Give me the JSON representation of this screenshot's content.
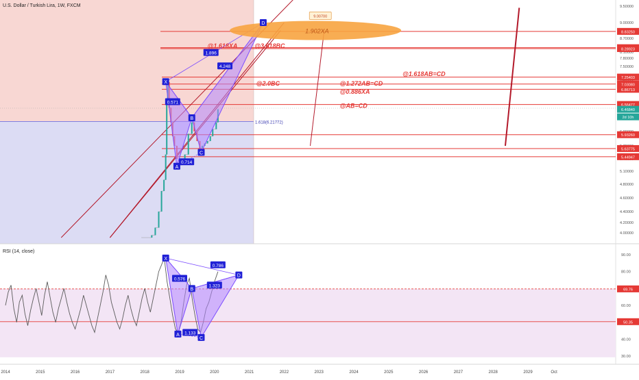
{
  "header": {
    "title": "U.S. Dollar / Turkish Lira, 1W, FXCM"
  },
  "rsi_header": "RSI (14, close)",
  "colors": {
    "up": "#26a69a",
    "down": "#ef5350",
    "level": "#e53935",
    "pattern_fill": "#b388ff",
    "pattern_line": "#7c4dff",
    "label_bg": "#2121d6",
    "zone_top": "#f8d7d3",
    "zone_bottom": "#dcdcf4",
    "ellipse": "#f7a440",
    "rsi_line": "#5b5b5b",
    "rsi_band": "#f3e5f5"
  },
  "chart_data": [
    {
      "type": "line",
      "name": "price",
      "title": "U.S. Dollar / Turkish Lira, 1W, FXCM",
      "x_ticks": [
        "2014",
        "2015",
        "2016",
        "2017",
        "2018",
        "2019",
        "2020",
        "2021",
        "2022",
        "2023",
        "2024",
        "2025",
        "2026",
        "2027",
        "2028",
        "2029",
        "Oct"
      ],
      "y_ticks": [
        4.0,
        4.2,
        4.4,
        4.6,
        4.8,
        5.1,
        5.4,
        5.7,
        6.0,
        6.3,
        6.6,
        6.9,
        7.2,
        7.5,
        7.8,
        8.1,
        8.4,
        8.7,
        9.0,
        9.5
      ],
      "y_tick_labels": [
        "4.00000",
        "4.20000",
        "4.40000",
        "4.60000",
        "4.80000",
        "5.10000",
        "5.40000",
        "5.70000",
        "6.00000",
        "6.30000",
        "6.60000",
        "6.90000",
        "7.20000",
        "7.50000",
        "7.80000",
        "8.10000",
        "8.40000",
        "8.70000",
        "9.00000",
        "9.50000"
      ],
      "price_series": [
        {
          "x": 2017.9,
          "y": 3.9
        },
        {
          "x": 2018.0,
          "y": 3.8
        },
        {
          "x": 2018.1,
          "y": 3.85
        },
        {
          "x": 2018.2,
          "y": 3.95
        },
        {
          "x": 2018.3,
          "y": 4.1
        },
        {
          "x": 2018.4,
          "y": 4.4
        },
        {
          "x": 2018.48,
          "y": 4.7
        },
        {
          "x": 2018.55,
          "y": 4.9
        },
        {
          "x": 2018.6,
          "y": 5.5
        },
        {
          "x": 2018.63,
          "y": 6.6
        },
        {
          "x": 2018.66,
          "y": 7.1
        },
        {
          "x": 2018.7,
          "y": 6.5
        },
        {
          "x": 2018.75,
          "y": 6.2
        },
        {
          "x": 2018.8,
          "y": 5.9
        },
        {
          "x": 2018.85,
          "y": 5.7
        },
        {
          "x": 2018.92,
          "y": 5.4
        },
        {
          "x": 2019.0,
          "y": 5.25
        },
        {
          "x": 2019.08,
          "y": 5.4
        },
        {
          "x": 2019.15,
          "y": 5.5
        },
        {
          "x": 2019.25,
          "y": 5.95
        },
        {
          "x": 2019.35,
          "y": 6.2
        },
        {
          "x": 2019.42,
          "y": 6.0
        },
        {
          "x": 2019.5,
          "y": 5.8
        },
        {
          "x": 2019.58,
          "y": 5.65
        },
        {
          "x": 2019.65,
          "y": 5.7
        },
        {
          "x": 2019.72,
          "y": 5.75
        },
        {
          "x": 2019.8,
          "y": 5.8
        },
        {
          "x": 2019.88,
          "y": 5.9
        },
        {
          "x": 2019.95,
          "y": 6.05
        },
        {
          "x": 2020.05,
          "y": 6.2
        },
        {
          "x": 2020.1,
          "y": 6.47
        }
      ],
      "rsi_series": {
        "x": [
          2014.0,
          2014.08,
          2014.16,
          2014.24,
          2014.32,
          2014.4,
          2014.48,
          2014.56,
          2014.64,
          2014.72,
          2014.8,
          2014.88,
          2014.96,
          2015.04,
          2015.12,
          2015.2,
          2015.28,
          2015.36,
          2015.44,
          2015.52,
          2015.6,
          2015.68,
          2015.76,
          2015.84,
          2015.92,
          2016.0,
          2016.08,
          2016.16,
          2016.24,
          2016.32,
          2016.4,
          2016.48,
          2016.56,
          2016.64,
          2016.72,
          2016.8,
          2016.88,
          2016.96,
          2017.04,
          2017.12,
          2017.2,
          2017.28,
          2017.36,
          2017.44,
          2017.52,
          2017.6,
          2017.68,
          2017.76,
          2017.84,
          2017.92,
          2018.0,
          2018.08,
          2018.16,
          2018.24,
          2018.32,
          2018.4,
          2018.48,
          2018.56,
          2018.64,
          2018.72,
          2018.8,
          2018.88,
          2018.96,
          2019.04,
          2019.12,
          2019.2,
          2019.28,
          2019.36,
          2019.44,
          2019.52,
          2019.6,
          2019.68,
          2019.76,
          2019.84,
          2019.92,
          2020.0,
          2020.1
        ],
        "y": [
          60,
          68,
          72,
          58,
          50,
          62,
          66,
          55,
          48,
          57,
          64,
          70,
          62,
          54,
          66,
          74,
          65,
          56,
          50,
          58,
          64,
          70,
          62,
          55,
          50,
          46,
          52,
          58,
          66,
          60,
          54,
          48,
          44,
          52,
          60,
          68,
          78,
          72,
          62,
          56,
          50,
          46,
          52,
          60,
          66,
          58,
          52,
          48,
          56,
          64,
          70,
          62,
          56,
          64,
          72,
          80,
          84,
          88,
          74,
          64,
          54,
          46,
          44,
          50,
          62,
          72,
          76,
          64,
          54,
          46,
          44,
          50,
          58,
          62,
          68,
          74,
          80
        ]
      },
      "levels": [
        {
          "value": 8.8325,
          "label": "8.83250"
        },
        {
          "value": 8.338,
          "label": "8.33800"
        },
        {
          "value": 8.28923,
          "label": "8.28923"
        },
        {
          "value": 7.25403,
          "label": "7.25403"
        },
        {
          "value": 7.0308,
          "label": "7.03080"
        },
        {
          "value": 6.86713,
          "label": "6.86713"
        },
        {
          "value": 6.56477,
          "label": "6.56477"
        },
        {
          "value": 5.9326,
          "label": "5.93260"
        },
        {
          "value": 5.63775,
          "label": "5.63775"
        },
        {
          "value": 5.44947,
          "label": "5.44947"
        }
      ],
      "current_price": {
        "value": 6.4684,
        "label": "6.46840",
        "countdown": "2d 10h"
      },
      "fib_label": "1.618(6.21772)",
      "fib_value": 6.21772,
      "xabcd": [
        {
          "name": "X",
          "x": 2018.6,
          "y": 7.12
        },
        {
          "name": "A",
          "x": 2018.92,
          "y": 5.22
        },
        {
          "name": "B",
          "x": 2019.35,
          "y": 6.3
        },
        {
          "name": "C",
          "x": 2019.62,
          "y": 5.55
        },
        {
          "name": "D",
          "x": 2021.4,
          "y": 9.0
        }
      ],
      "ratios": [
        {
          "text": "0.571",
          "x": 2018.8,
          "y": 6.62
        },
        {
          "text": "1.896",
          "x": 2019.9,
          "y": 8.08
        },
        {
          "text": "4.248",
          "x": 2020.3,
          "y": 7.52
        },
        {
          "text": "0.714",
          "x": 2019.2,
          "y": 5.33
        }
      ],
      "target_badge": {
        "text": "9.00700",
        "x": 2023.0,
        "y": 9.2
      },
      "ellipse": {
        "cx": 2022.9,
        "cy": 8.85,
        "label": "1.902XA"
      },
      "annotations": [
        {
          "text": "@1.618XA",
          "x": 2019.8,
          "y": 8.32
        },
        {
          "text": "@3.618BC",
          "x": 2021.15,
          "y": 8.32
        },
        {
          "text": "@1.618AB=CD",
          "x": 2025.4,
          "y": 7.28
        },
        {
          "text": "@2.0BC",
          "x": 2021.2,
          "y": 6.97
        },
        {
          "text": "@1.272AB=CD",
          "x": 2023.6,
          "y": 6.97
        },
        {
          "text": "@0.886XA",
          "x": 2023.6,
          "y": 6.78
        },
        {
          "text": "@AB=CD",
          "x": 2023.6,
          "y": 6.5
        }
      ],
      "trend_lines": [
        {
          "x1": 2015.6,
          "y1": 3.7,
          "x2": 2022.4,
          "y2": 9.9
        },
        {
          "x1": 2017.0,
          "y1": 3.7,
          "x2": 2022.0,
          "y2": 9.0
        },
        {
          "x1": 2017.0,
          "y1": 3.7,
          "x2": 2021.9,
          "y2": 8.85
        }
      ],
      "projection_lines": [
        {
          "x1": 2023.15,
          "y1": 8.85,
          "x2": 2022.75,
          "y2": 5.7,
          "width": 1
        },
        {
          "x1": 2028.75,
          "y1": 9.45,
          "x2": 2028.35,
          "y2": 5.7,
          "width": 2
        }
      ]
    },
    {
      "type": "line",
      "name": "RSI (14, close)",
      "y_ticks": [
        30,
        40,
        50,
        60,
        70,
        80,
        90
      ],
      "y_tick_labels": [
        "30.00",
        "40.00",
        "50.00",
        "60.00",
        "70.00",
        "80.00",
        "90.00"
      ],
      "levels": [
        {
          "value": 69.76,
          "label": "69.76"
        },
        {
          "value": 50.35,
          "label": "50.35"
        }
      ],
      "xabcd": [
        {
          "name": "X",
          "x": 2018.6,
          "y": 88
        },
        {
          "name": "A",
          "x": 2018.95,
          "y": 43
        },
        {
          "name": "B",
          "x": 2019.35,
          "y": 70
        },
        {
          "name": "C",
          "x": 2019.62,
          "y": 41
        },
        {
          "name": "D",
          "x": 2020.7,
          "y": 78
        }
      ],
      "ratios": [
        {
          "text": "0.576",
          "x": 2019.0,
          "y": 76
        },
        {
          "text": "0.786",
          "x": 2020.1,
          "y": 84
        },
        {
          "text": "1.323",
          "x": 2020.0,
          "y": 72
        },
        {
          "text": "1.133",
          "x": 2019.3,
          "y": 44
        }
      ]
    }
  ]
}
